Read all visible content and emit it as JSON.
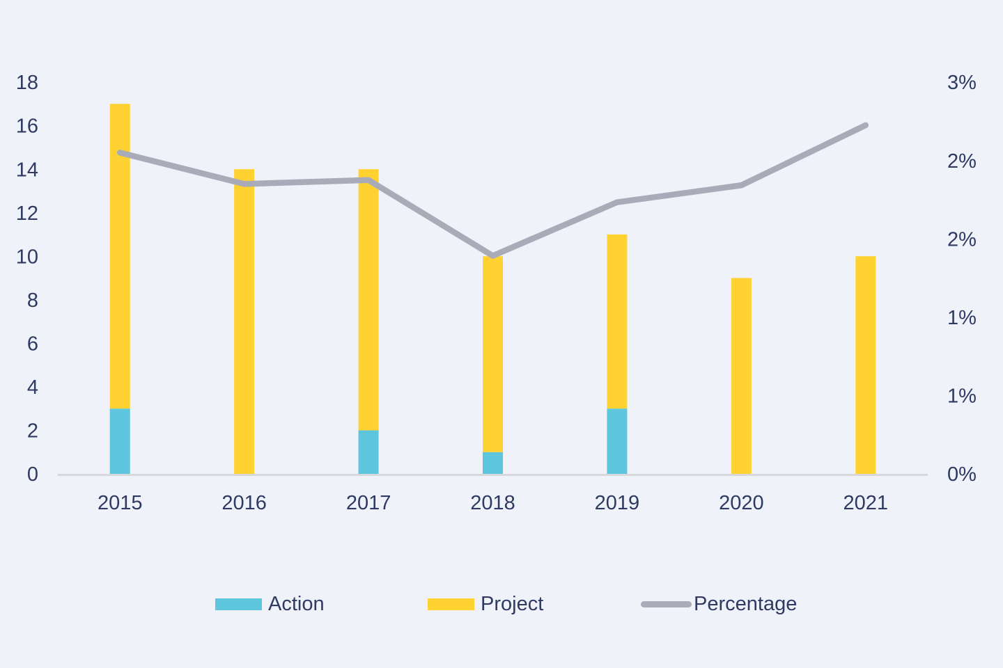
{
  "chart_data": {
    "type": "bar",
    "subtype": "stacked-bars-with-line-overlay",
    "title": "",
    "xlabel": "",
    "ylabel": "",
    "categories": [
      "2015",
      "2016",
      "2017",
      "2018",
      "2019",
      "2020",
      "2021"
    ],
    "series": [
      {
        "name": "Action",
        "type": "bar",
        "stack": "total",
        "color": "#5dc6dd",
        "axis": "left",
        "values": [
          3,
          0,
          2,
          1,
          3,
          0,
          0
        ]
      },
      {
        "name": "Project",
        "type": "bar",
        "stack": "total",
        "color": "#ffd232",
        "axis": "left",
        "values": [
          14,
          14,
          12,
          9,
          8,
          9,
          10
        ]
      },
      {
        "name": "Percentage",
        "type": "line",
        "color": "#a9abb8",
        "axis": "right",
        "values": [
          2.46,
          2.22,
          2.25,
          1.67,
          2.08,
          2.21,
          2.67
        ]
      }
    ],
    "stacked_totals": [
      17,
      14,
      14,
      10,
      11,
      9,
      10
    ],
    "left_axis": {
      "min": 0,
      "max": 18,
      "tick_labels": [
        "0",
        "2",
        "4",
        "6",
        "8",
        "10",
        "12",
        "14",
        "16",
        "18"
      ]
    },
    "right_axis": {
      "min": 0,
      "max": 3,
      "unit": "%",
      "tick_labels": [
        "0%",
        "1%",
        "1%",
        "2%",
        "2%",
        "3%"
      ]
    },
    "grid": false,
    "legend_position": "bottom"
  },
  "legend": {
    "items": [
      {
        "label": "Action",
        "swatch": "bar",
        "color": "#5dc6dd"
      },
      {
        "label": "Project",
        "swatch": "bar",
        "color": "#ffd232"
      },
      {
        "label": "Percentage",
        "swatch": "line",
        "color": "#a9abb8"
      }
    ]
  },
  "colors": {
    "background": "#eff3f9",
    "text": "#2e3a62",
    "axis_line": "#d7d8dc",
    "action_bar": "#5dc6dd",
    "project_bar": "#ffd232",
    "percentage_line": "#a9abb8"
  }
}
